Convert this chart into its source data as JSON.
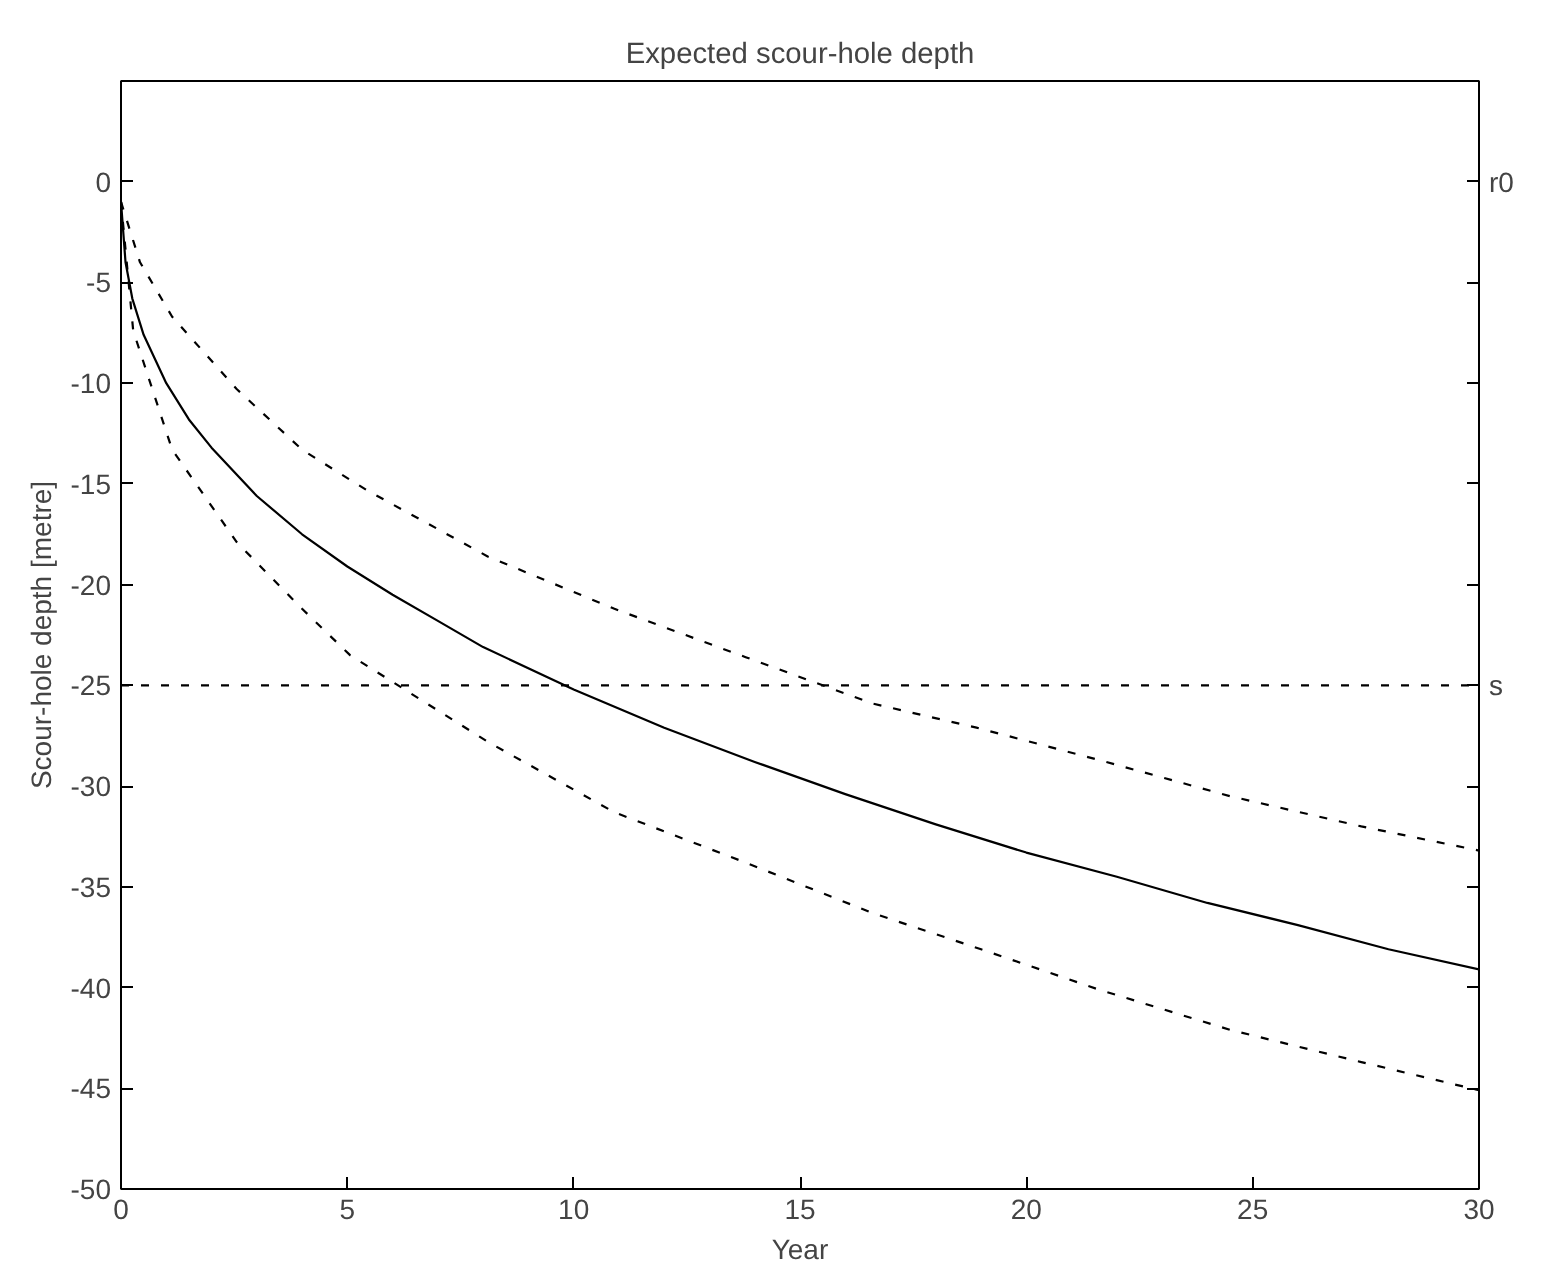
{
  "chart_data": {
    "type": "line",
    "title": "Expected scour-hole depth",
    "xlabel": "Year",
    "ylabel": "Scour-hole depth [metre]",
    "xlim": [
      0,
      30
    ],
    "xticks": [
      0,
      5,
      10,
      15,
      20,
      25,
      30
    ],
    "ylim": [
      -50,
      5
    ],
    "yticks": [
      -50,
      -45,
      -40,
      -35,
      -30,
      -25,
      -20,
      -15,
      -10,
      -5,
      0
    ],
    "grid": false,
    "marker": "none",
    "annotations": [
      "r0"
    ],
    "ref_lines": [
      {
        "axis": "y",
        "value": -25,
        "label": "s",
        "color": "#000000",
        "line_style": "dashed"
      }
    ],
    "series": [
      {
        "color": "#000000",
        "line_style": "solid",
        "x": [
          0,
          0.1,
          0.25,
          0.5,
          1,
          1.5,
          2,
          3,
          4,
          5,
          6,
          7,
          8,
          10,
          12,
          14,
          16,
          18,
          20,
          22,
          24,
          26,
          28,
          30
        ],
        "values": [
          -1,
          -4.0,
          -5.8,
          -7.6,
          -10.0,
          -11.8,
          -13.2,
          -15.6,
          -17.5,
          -19.1,
          -20.5,
          -21.8,
          -23.1,
          -25.2,
          -27.1,
          -28.8,
          -30.4,
          -31.9,
          -33.3,
          -34.5,
          -35.8,
          -36.9,
          -38.1,
          -39.1
        ]
      },
      {
        "color": "#000000",
        "line_style": "dashed",
        "x": [
          0,
          0.42,
          1.13,
          2.56,
          4,
          5.42,
          8.1,
          10.9,
          13.8,
          16.6,
          18.9,
          21.6,
          24.5,
          27.4,
          30
        ],
        "values": [
          -1,
          -4.0,
          -6.7,
          -10.3,
          -13.3,
          -15.3,
          -18.6,
          -21.2,
          -23.6,
          -25.9,
          -27.1,
          -28.7,
          -30.5,
          -32.0,
          -33.2
        ]
      },
      {
        "color": "#000000",
        "line_style": "dashed",
        "x": [
          0,
          0.27,
          1.13,
          2.56,
          4,
          5.06,
          8.1,
          10.9,
          13.8,
          16.6,
          19.0,
          21.6,
          24.5,
          27.4,
          30
        ],
        "values": [
          -1,
          -7.4,
          -13.3,
          -17.9,
          -21.2,
          -23.5,
          -27.8,
          -31.3,
          -33.8,
          -36.3,
          -38.1,
          -40.1,
          -42.1,
          -43.7,
          -45.1
        ]
      }
    ]
  }
}
